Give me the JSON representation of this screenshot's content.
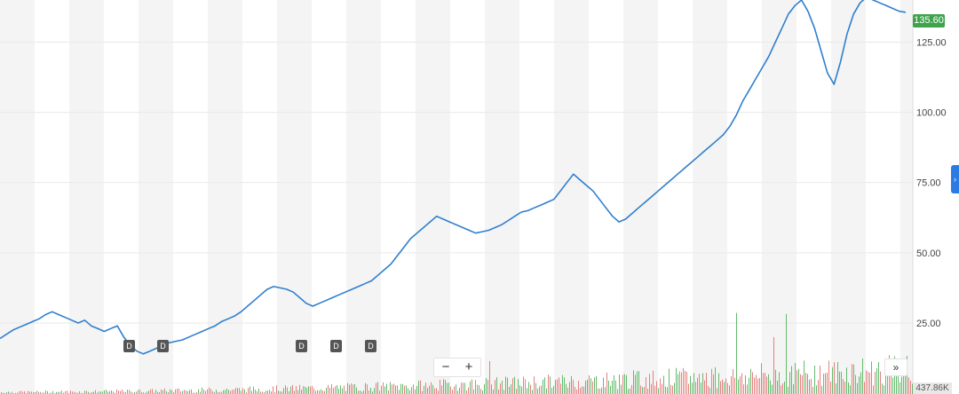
{
  "chart_data": {
    "type": "line",
    "y_axis": {
      "position": "right",
      "ticks": [
        "125.00",
        "100.00",
        "75.00",
        "50.00",
        "25.00"
      ],
      "ylim": [
        0,
        140
      ]
    },
    "series": [
      {
        "color": "#2f7fce",
        "values": [
          19.5,
          21,
          22.5,
          23.5,
          24.5,
          25.5,
          26.5,
          28,
          29,
          28,
          27,
          26,
          25,
          26,
          24,
          23,
          22,
          23,
          24,
          20,
          17,
          15,
          14,
          15,
          16,
          17,
          18,
          18.5,
          19,
          20,
          21,
          22,
          23,
          24,
          25.5,
          26.5,
          27.5,
          29,
          31,
          33,
          35,
          37,
          38,
          37.5,
          37,
          36,
          34,
          32,
          31,
          32,
          33,
          34,
          35,
          36,
          37,
          38,
          39,
          40,
          42,
          44,
          46,
          49,
          52,
          55,
          57,
          59,
          61,
          63,
          62,
          61,
          60,
          59,
          58,
          57,
          57.5,
          58,
          59,
          60,
          61.5,
          63,
          64.5,
          65,
          66,
          67,
          68,
          69,
          72,
          75,
          78,
          76,
          74,
          72,
          69,
          66,
          63,
          61,
          62,
          64,
          66,
          68,
          70,
          72,
          74,
          76,
          78,
          80,
          82,
          84,
          86,
          88,
          90,
          92,
          95,
          99,
          104,
          108,
          112,
          116,
          120,
          125,
          130,
          135,
          138,
          140,
          136,
          130,
          122,
          114,
          110,
          118,
          128,
          135,
          139,
          141,
          140,
          139,
          138,
          137,
          136,
          135.6
        ],
        "last_value": "135.60"
      }
    ],
    "volume": {
      "color_up": "#4cae54",
      "color_down": "#e06b6b",
      "last_value": "437.86K",
      "max": 100
    },
    "markers": [
      {
        "label": "D"
      },
      {
        "label": "D"
      },
      {
        "label": "D"
      },
      {
        "label": "D"
      },
      {
        "label": "D"
      }
    ],
    "grid": true,
    "legend": "none"
  },
  "controls": {
    "zoom_out": "−",
    "zoom_in": "+",
    "scroll_right": "»",
    "panel_toggle": "›"
  }
}
